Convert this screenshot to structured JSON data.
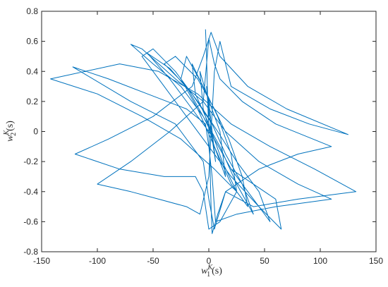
{
  "chart_data": {
    "type": "line",
    "title": "",
    "xlabel": {
      "base": "w",
      "sub": "1",
      "sup": "K",
      "arg": "(s)"
    },
    "ylabel": {
      "base": "w",
      "sub": "2",
      "sup": "K",
      "arg": "(s)"
    },
    "xlim": [
      -150,
      150
    ],
    "ylim": [
      -0.8,
      0.8
    ],
    "xticks": [
      -150,
      -100,
      -50,
      0,
      50,
      100,
      150
    ],
    "yticks": [
      -0.8,
      -0.6,
      -0.4,
      -0.2,
      0,
      0.2,
      0.4,
      0.6,
      0.8
    ],
    "xtick_labels": [
      "-150",
      "-100",
      "-50",
      "0",
      "50",
      "100",
      "150"
    ],
    "ytick_labels": [
      "-0.8",
      "-0.6",
      "-0.4",
      "-0.2",
      "0",
      "0.2",
      "0.4",
      "0.6",
      "0.8"
    ],
    "grid": false,
    "line_color": "#0072BD",
    "series": [
      {
        "values": [
          [
            -3,
            0.68
          ],
          [
            -2,
            0.5
          ],
          [
            -1,
            0.2
          ],
          [
            0,
            0.0
          ],
          [
            1,
            -0.2
          ],
          [
            2,
            -0.5
          ],
          [
            3,
            -0.68
          ],
          [
            8,
            -0.55
          ],
          [
            15,
            -0.4
          ],
          [
            40,
            -0.5
          ],
          [
            80,
            -0.45
          ],
          [
            132,
            -0.4
          ],
          [
            95,
            -0.25
          ],
          [
            55,
            -0.1
          ],
          [
            20,
            0.05
          ],
          [
            -10,
            0.25
          ],
          [
            -45,
            0.4
          ],
          [
            -80,
            0.45
          ],
          [
            -142,
            0.35
          ],
          [
            -100,
            0.25
          ],
          [
            -60,
            0.1
          ],
          [
            -25,
            -0.05
          ],
          [
            5,
            -0.25
          ],
          [
            25,
            -0.4
          ],
          [
            10,
            -0.6
          ],
          [
            0,
            -0.65
          ],
          [
            -5,
            -0.4
          ],
          [
            -12,
            -0.3
          ],
          [
            -40,
            -0.3
          ],
          [
            -80,
            -0.25
          ],
          [
            -120,
            -0.15
          ],
          [
            -90,
            -0.05
          ],
          [
            -50,
            0.1
          ],
          [
            -15,
            0.3
          ],
          [
            -5,
            0.5
          ],
          [
            2,
            0.66
          ],
          [
            10,
            0.5
          ],
          [
            35,
            0.3
          ],
          [
            70,
            0.15
          ],
          [
            125,
            -0.02
          ],
          [
            90,
            0.05
          ],
          [
            55,
            0.15
          ],
          [
            20,
            0.3
          ],
          [
            10,
            0.6
          ],
          [
            5,
            0.4
          ],
          [
            2,
            0.0
          ],
          [
            0,
            -0.3
          ],
          [
            -8,
            -0.55
          ],
          [
            -20,
            -0.5
          ],
          [
            -45,
            -0.45
          ],
          [
            -70,
            -0.4
          ],
          [
            -100,
            -0.35
          ],
          [
            -70,
            -0.2
          ],
          [
            -35,
            0.0
          ],
          [
            -5,
            0.2
          ],
          [
            0,
            0.62
          ],
          [
            5,
            0.45
          ],
          [
            10,
            0.35
          ],
          [
            30,
            0.2
          ],
          [
            60,
            0.05
          ],
          [
            110,
            -0.1
          ],
          [
            80,
            -0.15
          ],
          [
            45,
            -0.25
          ],
          [
            15,
            -0.4
          ],
          [
            5,
            -0.65
          ],
          [
            0,
            -0.45
          ],
          [
            -5,
            -0.2
          ],
          [
            -30,
            0.05
          ],
          [
            -70,
            0.2
          ],
          [
            -122,
            0.43
          ],
          [
            -90,
            0.35
          ],
          [
            -55,
            0.25
          ],
          [
            -20,
            0.15
          ],
          [
            -3,
            0.05
          ],
          [
            0,
            -0.1
          ],
          [
            3,
            -0.3
          ],
          [
            6,
            -0.6
          ],
          [
            25,
            -0.55
          ],
          [
            60,
            -0.5
          ],
          [
            110,
            -0.45
          ],
          [
            80,
            -0.35
          ],
          [
            45,
            -0.2
          ],
          [
            15,
            0.0
          ],
          [
            -5,
            0.2
          ],
          [
            -30,
            0.35
          ],
          [
            -60,
            0.55
          ],
          [
            -70,
            0.58
          ],
          [
            -50,
            0.45
          ],
          [
            -25,
            0.3
          ],
          [
            -5,
            0.1
          ],
          [
            5,
            -0.05
          ],
          [
            20,
            -0.25
          ],
          [
            40,
            -0.35
          ],
          [
            60,
            -0.45
          ],
          [
            65,
            -0.65
          ],
          [
            45,
            -0.5
          ],
          [
            20,
            -0.3
          ],
          [
            0,
            -0.1
          ],
          [
            -20,
            0.1
          ],
          [
            -40,
            0.3
          ],
          [
            -60,
            0.5
          ],
          [
            -50,
            0.55
          ],
          [
            -30,
            0.4
          ],
          [
            -10,
            0.2
          ],
          [
            8,
            0.0
          ],
          [
            25,
            -0.2
          ],
          [
            45,
            -0.4
          ],
          [
            55,
            -0.6
          ],
          [
            40,
            -0.45
          ],
          [
            20,
            -0.25
          ],
          [
            5,
            -0.05
          ],
          [
            -15,
            0.15
          ],
          [
            -35,
            0.35
          ],
          [
            -55,
            0.52
          ],
          [
            -35,
            0.42
          ],
          [
            -15,
            0.25
          ],
          [
            3,
            0.05
          ],
          [
            15,
            -0.15
          ],
          [
            30,
            -0.35
          ],
          [
            40,
            -0.55
          ],
          [
            25,
            -0.35
          ],
          [
            10,
            -0.1
          ],
          [
            -5,
            0.1
          ],
          [
            -20,
            0.3
          ],
          [
            -40,
            0.45
          ],
          [
            -30,
            0.5
          ],
          [
            -10,
            0.35
          ],
          [
            5,
            0.15
          ],
          [
            18,
            -0.05
          ],
          [
            30,
            -0.3
          ],
          [
            35,
            -0.5
          ],
          [
            20,
            -0.35
          ],
          [
            5,
            -0.1
          ],
          [
            -10,
            0.15
          ],
          [
            -25,
            0.35
          ],
          [
            -20,
            0.5
          ],
          [
            -5,
            0.3
          ],
          [
            8,
            0.1
          ],
          [
            20,
            -0.15
          ],
          [
            25,
            -0.4
          ],
          [
            12,
            -0.2
          ],
          [
            0,
            0.05
          ],
          [
            -12,
            0.25
          ],
          [
            -15,
            0.45
          ],
          [
            -2,
            0.25
          ],
          [
            10,
            0.0
          ],
          [
            15,
            -0.3
          ],
          [
            5,
            -0.1
          ],
          [
            -5,
            0.15
          ],
          [
            -8,
            0.4
          ],
          [
            0,
            0.2
          ],
          [
            6,
            -0.2
          ],
          [
            2,
            0.0
          ],
          [
            -2,
            0.3
          ],
          [
            0,
            0.1
          ]
        ]
      }
    ]
  }
}
